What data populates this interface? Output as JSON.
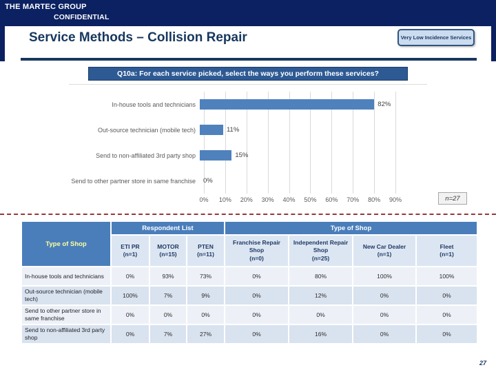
{
  "banner": {
    "company": "THE MARTEC GROUP",
    "confidential": "CONFIDENTIAL"
  },
  "header": {
    "title": "Service Methods – Collision Repair",
    "badge": "Very Low Incidence Services"
  },
  "question": {
    "label": "Q10a: For each service picked, select the ways you perform these services?"
  },
  "chart_data": {
    "type": "bar",
    "orientation": "horizontal",
    "categories": [
      "In-house tools and technicians",
      "Out-source technician (mobile tech)",
      "Send to non-affiliated 3rd party shop",
      "Send to other partner store in same franchise"
    ],
    "values": [
      82,
      11,
      15,
      0
    ],
    "value_labels": [
      "82%",
      "11%",
      "15%",
      "0%"
    ],
    "x_ticks": [
      "0%",
      "10%",
      "20%",
      "30%",
      "40%",
      "50%",
      "60%",
      "70%",
      "80%",
      "90%"
    ],
    "xlim": [
      0,
      90
    ],
    "grid": true,
    "legend": "none",
    "bar_color": "#4f81bd",
    "sample_note": "n=27"
  },
  "table": {
    "corner_header": "Type of Shop",
    "groups": [
      {
        "label": "Respondent List",
        "span": 3
      },
      {
        "label": "Type of Shop",
        "span": 4
      }
    ],
    "columns": [
      {
        "name": "ETI PR",
        "n": "(n=1)"
      },
      {
        "name": "MOTOR",
        "n": "(n=15)"
      },
      {
        "name": "PTEN",
        "n": "(n=11)"
      },
      {
        "name": "Franchise Repair Shop",
        "n": "(n=0)"
      },
      {
        "name": "Independent Repair Shop",
        "n": "(n=25)"
      },
      {
        "name": "New Car Dealer",
        "n": "(n=1)"
      },
      {
        "name": "Fleet",
        "n": "(n=1)"
      }
    ],
    "rows": [
      {
        "label": "In-house tools and technicians",
        "values": [
          "0%",
          "93%",
          "73%",
          "0%",
          "80%",
          "100%",
          "100%"
        ]
      },
      {
        "label": "Out-source technician (mobile tech)",
        "values": [
          "100%",
          "7%",
          "9%",
          "0%",
          "12%",
          "0%",
          "0%"
        ]
      },
      {
        "label": "Send to other partner store in same franchise",
        "values": [
          "0%",
          "0%",
          "0%",
          "0%",
          "0%",
          "0%",
          "0%"
        ]
      },
      {
        "label": "Send to non-affiliated 3rd party shop",
        "values": [
          "0%",
          "7%",
          "27%",
          "0%",
          "16%",
          "0%",
          "0%"
        ]
      }
    ]
  },
  "footer": {
    "page_number": "27"
  },
  "colors": {
    "banner_navy": "#0b2161",
    "title_navy": "#17375e",
    "question_bg": "#2e5a94",
    "table_header_blue": "#4a7ebb",
    "col_header_bg": "#dce6f2",
    "row_light": "#edf1f7",
    "row_dark": "#d9e2ef",
    "bar_blue": "#4f81bd",
    "dashed_red": "#953735",
    "corner_text_yellow": "#ffff99"
  }
}
